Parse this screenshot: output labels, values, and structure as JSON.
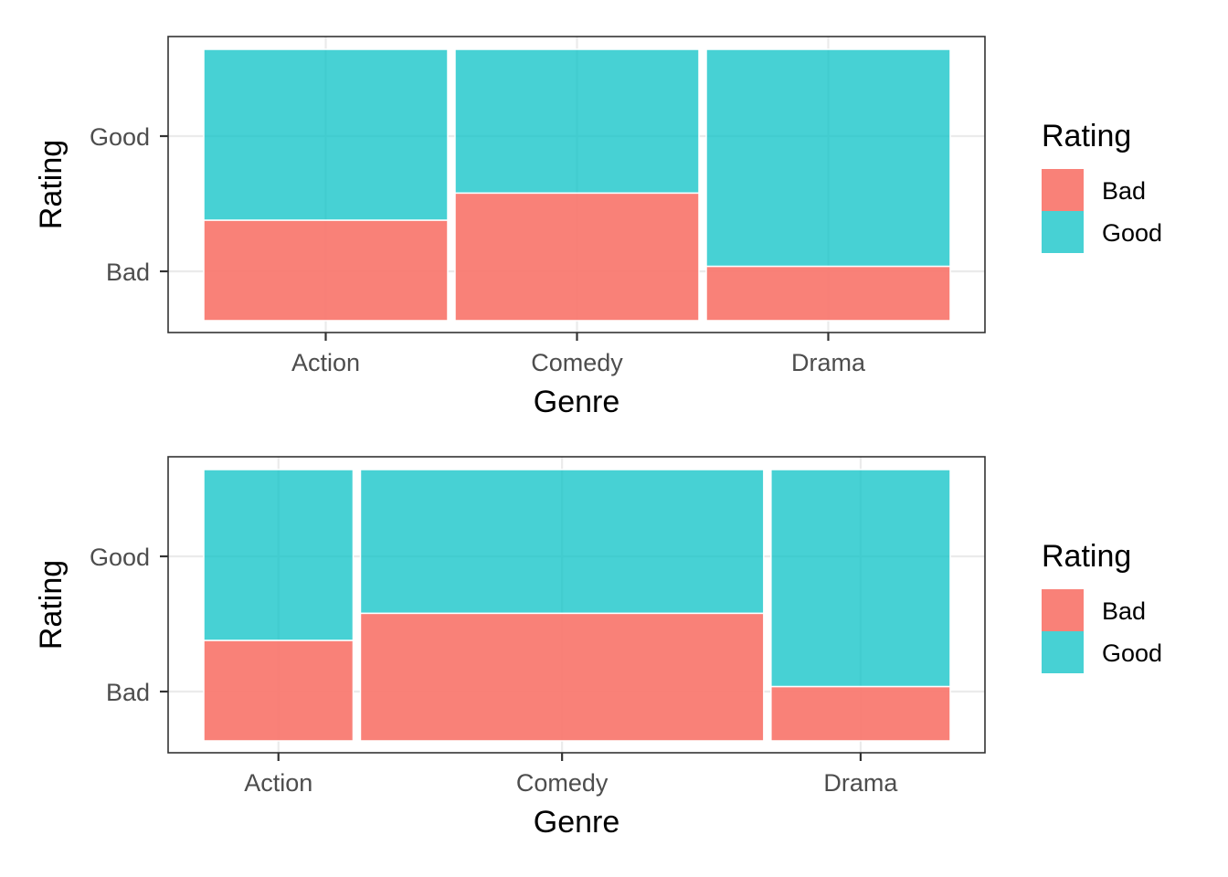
{
  "chart_data": [
    {
      "type": "mosaic",
      "xlabel": "Genre",
      "ylabel": "Rating",
      "categories": [
        "Action",
        "Comedy",
        "Drama"
      ],
      "levels": [
        "Bad",
        "Good"
      ],
      "widths": [
        1,
        1,
        1
      ],
      "bad_share": [
        0.37,
        0.47,
        0.2
      ],
      "legend": {
        "title": "Rating",
        "items": [
          "Bad",
          "Good"
        ],
        "position": "right"
      },
      "grid": true
    },
    {
      "type": "mosaic",
      "xlabel": "Genre",
      "ylabel": "Rating",
      "categories": [
        "Action",
        "Comedy",
        "Drama"
      ],
      "levels": [
        "Bad",
        "Good"
      ],
      "widths": [
        0.2,
        0.54,
        0.24
      ],
      "bad_share": [
        0.37,
        0.47,
        0.2
      ],
      "legend": {
        "title": "Rating",
        "items": [
          "Bad",
          "Good"
        ],
        "position": "right"
      },
      "grid": true
    }
  ],
  "colors": {
    "Bad": "#F8766D",
    "Good": "#00BFC4"
  }
}
